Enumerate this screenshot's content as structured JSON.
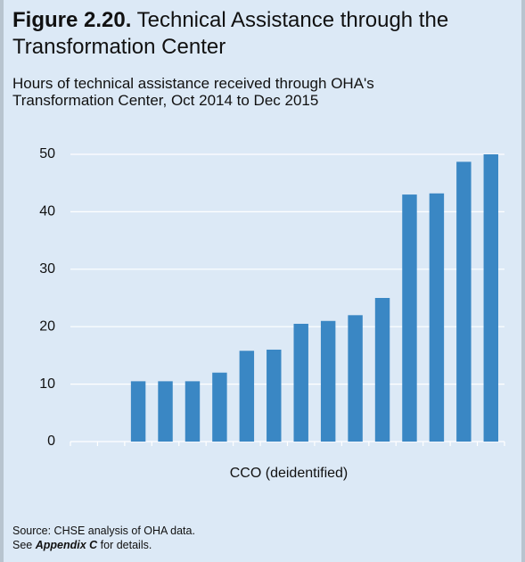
{
  "chart_data": {
    "type": "bar",
    "figure_label": "Figure 2.20.",
    "title": "Technical Assistance through the Transformation Center",
    "subtitle": "Hours of technical assistance received through OHA's Transformation Center, Oct 2014 to Dec 2015",
    "x_label": "CCO (deidentified)",
    "categories": [
      null,
      null,
      null,
      null,
      null,
      null,
      null,
      null,
      null,
      null,
      null,
      null,
      null,
      null,
      null,
      null
    ],
    "values": [
      null,
      null,
      10.5,
      10.5,
      10.5,
      12,
      15.8,
      16,
      20.5,
      21,
      22,
      25,
      43,
      43.2,
      48.7,
      50
    ],
    "color": "#3a87c4",
    "ylim": [
      0,
      50
    ],
    "yticks": [
      0,
      10,
      20,
      30,
      40,
      50
    ],
    "grid": true,
    "source": "Source: CHSE analysis of OHA data.",
    "note_prefix": "See",
    "note_link": "Appendix C",
    "note_suffix": "for details."
  }
}
